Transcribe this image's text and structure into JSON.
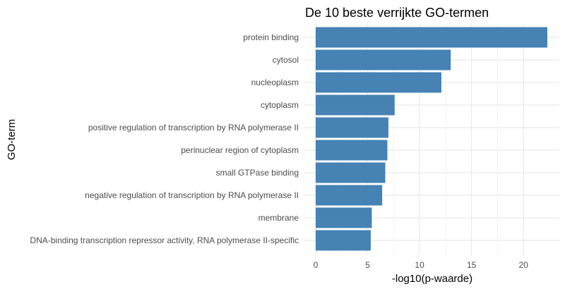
{
  "chart_data": {
    "type": "bar",
    "orientation": "horizontal",
    "title": "De 10 beste verrijkte GO-termen",
    "xlabel": "-log10(p-waarde)",
    "ylabel": "GO-term",
    "categories": [
      "protein binding",
      "cytosol",
      "nucleoplasm",
      "cytoplasm",
      "positive regulation of transcription by RNA polymerase II",
      "perinuclear region of cytoplasm",
      "small GTPase binding",
      "negative regulation of transcription by RNA polymerase II",
      "membrane",
      "DNA-binding transcription repressor activity, RNA polymerase II-specific"
    ],
    "values": [
      22.3,
      13.0,
      12.1,
      7.6,
      7.0,
      6.9,
      6.7,
      6.4,
      5.4,
      5.3
    ],
    "xlim": [
      0,
      22.3
    ],
    "xticks": [
      0,
      5,
      10,
      15,
      20
    ],
    "bar_color": "#4682b4",
    "grid": true
  }
}
